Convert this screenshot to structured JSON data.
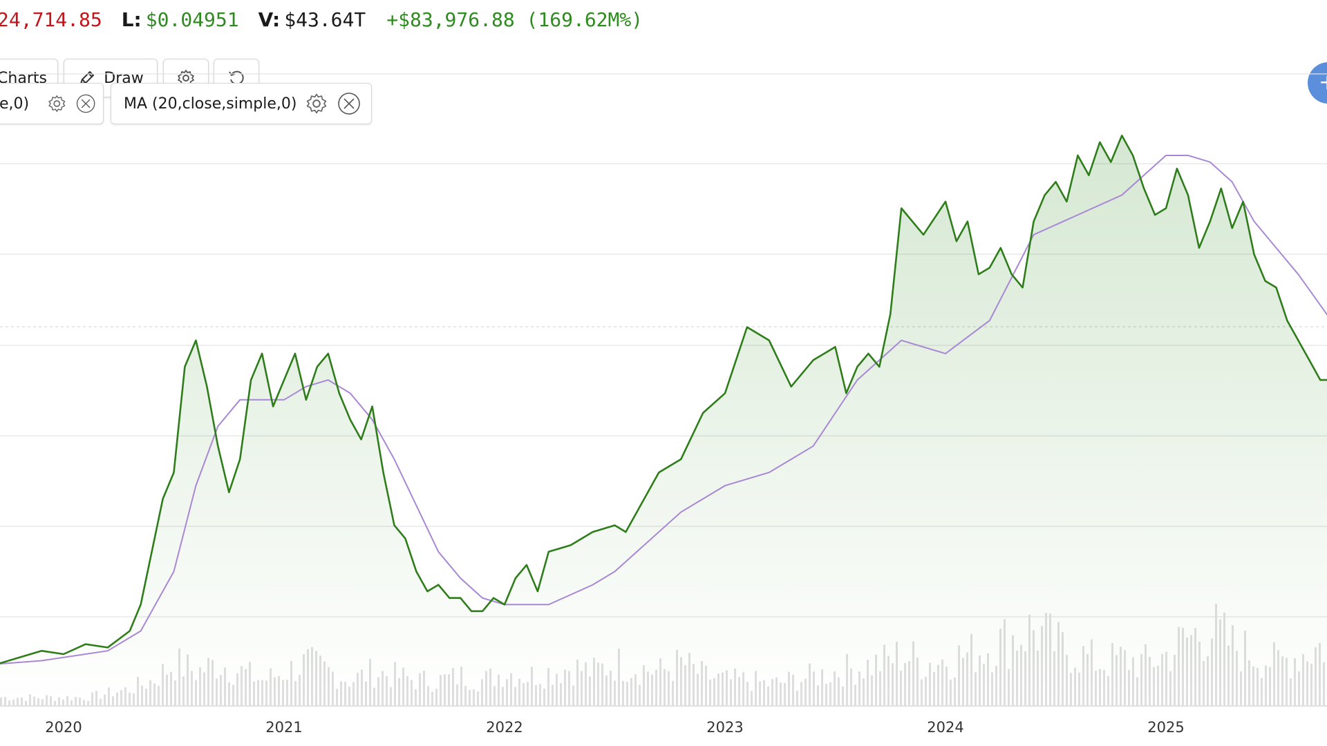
{
  "stats": {
    "high_partial": "24,714.85",
    "low_label": "L:",
    "low_value": "$0.04951",
    "vol_label": "V:",
    "vol_value": "$43.64T",
    "change": "+$83,976.88 (169.62M%)"
  },
  "toolbar": {
    "charts_label": "Charts",
    "draw_label": "Draw"
  },
  "indicators": {
    "first_partial": "e,0)",
    "ma_label": "MA (20,close,simple,0)"
  },
  "colors": {
    "price_line": "#2e7d1a",
    "ma_line": "#a887d4",
    "volume_bar": "#dedede",
    "grid": "#e3e3e3",
    "fab": "#5b8fdc"
  },
  "chart_data": {
    "type": "line",
    "title": "",
    "xlabel": "",
    "ylabel": "",
    "x_ticks": [
      "2020",
      "2021",
      "2022",
      "2023",
      "2024",
      "2025"
    ],
    "ylim": [
      0,
      8
    ],
    "grid": true,
    "series": [
      {
        "role": "price",
        "x": [
          2019.7,
          2019.8,
          2019.9,
          2020.0,
          2020.1,
          2020.2,
          2020.3,
          2020.35,
          2020.4,
          2020.45,
          2020.5,
          2020.55,
          2020.6,
          2020.65,
          2020.7,
          2020.75,
          2020.8,
          2020.85,
          2020.9,
          2020.95,
          2021.0,
          2021.05,
          2021.1,
          2021.15,
          2021.2,
          2021.25,
          2021.3,
          2021.35,
          2021.4,
          2021.45,
          2021.5,
          2021.55,
          2021.6,
          2021.65,
          2021.7,
          2021.75,
          2021.8,
          2021.85,
          2021.9,
          2021.95,
          2022.0,
          2022.05,
          2022.1,
          2022.15,
          2022.2,
          2022.3,
          2022.4,
          2022.5,
          2022.55,
          2022.6,
          2022.7,
          2022.8,
          2022.9,
          2023.0,
          2023.1,
          2023.2,
          2023.3,
          2023.4,
          2023.5,
          2023.55,
          2023.6,
          2023.65,
          2023.7,
          2023.75,
          2023.8,
          2023.9,
          2024.0,
          2024.05,
          2024.1,
          2024.15,
          2024.2,
          2024.25,
          2024.3,
          2024.35,
          2024.4,
          2024.45,
          2024.5,
          2024.55,
          2024.6,
          2024.65,
          2024.7,
          2024.75,
          2024.8,
          2024.85,
          2024.9,
          2024.95,
          2025.0,
          2025.05,
          2025.1,
          2025.15,
          2025.2,
          2025.25,
          2025.3,
          2025.35,
          2025.4,
          2025.45,
          2025.5,
          2025.55,
          2025.6,
          2025.65,
          2025.7,
          2025.75
        ],
        "y": [
          0.3,
          0.4,
          0.5,
          0.45,
          0.6,
          0.55,
          0.8,
          1.2,
          2.0,
          2.8,
          3.2,
          4.8,
          5.2,
          4.5,
          3.6,
          2.9,
          3.4,
          4.6,
          5.0,
          4.2,
          4.6,
          5.0,
          4.3,
          4.8,
          5.0,
          4.4,
          4.0,
          3.7,
          4.2,
          3.2,
          2.4,
          2.2,
          1.7,
          1.4,
          1.5,
          1.3,
          1.3,
          1.1,
          1.1,
          1.3,
          1.2,
          1.6,
          1.8,
          1.4,
          2.0,
          2.1,
          2.3,
          2.4,
          2.3,
          2.6,
          3.2,
          3.4,
          4.1,
          4.4,
          5.4,
          5.2,
          4.5,
          4.9,
          5.1,
          4.4,
          4.8,
          5.0,
          4.8,
          5.6,
          7.2,
          6.8,
          7.3,
          6.7,
          7.0,
          6.2,
          6.3,
          6.6,
          6.2,
          6.0,
          7.0,
          7.4,
          7.6,
          7.3,
          8.0,
          7.7,
          8.2,
          7.9,
          8.3,
          8.0,
          7.5,
          7.1,
          7.2,
          7.8,
          7.4,
          6.6,
          7.0,
          7.5,
          6.9,
          7.3,
          6.5,
          6.1,
          6.0,
          5.5,
          5.2,
          4.9,
          4.6,
          4.6
        ]
      },
      {
        "role": "ma",
        "name": "MA (20,close,simple,0)",
        "x": [
          2019.7,
          2019.9,
          2020.0,
          2020.2,
          2020.35,
          2020.5,
          2020.6,
          2020.7,
          2020.8,
          2020.9,
          2021.0,
          2021.1,
          2021.2,
          2021.3,
          2021.4,
          2021.5,
          2021.6,
          2021.7,
          2021.8,
          2021.9,
          2022.0,
          2022.2,
          2022.4,
          2022.5,
          2022.6,
          2022.8,
          2023.0,
          2023.2,
          2023.4,
          2023.6,
          2023.8,
          2024.0,
          2024.2,
          2024.4,
          2024.6,
          2024.8,
          2025.0,
          2025.1,
          2025.2,
          2025.3,
          2025.4,
          2025.5,
          2025.6,
          2025.75
        ],
        "y": [
          0.3,
          0.35,
          0.4,
          0.5,
          0.8,
          1.7,
          3.0,
          3.9,
          4.3,
          4.3,
          4.3,
          4.5,
          4.6,
          4.4,
          4.0,
          3.4,
          2.7,
          2.0,
          1.6,
          1.3,
          1.2,
          1.2,
          1.5,
          1.7,
          2.0,
          2.6,
          3.0,
          3.2,
          3.6,
          4.6,
          5.2,
          5.0,
          5.5,
          6.8,
          7.1,
          7.4,
          8.0,
          8.0,
          7.9,
          7.6,
          7.0,
          6.6,
          6.2,
          5.5
        ]
      }
    ],
    "volume": {
      "x": [
        2019.7,
        2019.8,
        2019.9,
        2020.0,
        2020.1,
        2020.2,
        2020.3,
        2020.4,
        2020.5,
        2020.6,
        2020.7,
        2020.8,
        2020.9,
        2021.0,
        2021.1,
        2021.2,
        2021.3,
        2021.4,
        2021.5,
        2021.6,
        2021.7,
        2021.8,
        2021.9,
        2022.0,
        2022.1,
        2022.2,
        2022.3,
        2022.4,
        2022.5,
        2022.6,
        2022.7,
        2022.8,
        2022.9,
        2023.0,
        2023.1,
        2023.2,
        2023.3,
        2023.4,
        2023.5,
        2023.6,
        2023.7,
        2023.8,
        2023.9,
        2024.0,
        2024.1,
        2024.2,
        2024.3,
        2024.4,
        2024.5,
        2024.6,
        2024.7,
        2024.8,
        2024.9,
        2025.0,
        2025.1,
        2025.2,
        2025.3,
        2025.4,
        2025.5,
        2025.6,
        2025.7
      ],
      "values": [
        0.1,
        0.1,
        0.1,
        0.1,
        0.1,
        0.15,
        0.2,
        0.3,
        0.5,
        0.4,
        0.5,
        0.4,
        0.3,
        0.4,
        0.5,
        0.4,
        0.3,
        0.4,
        0.35,
        0.3,
        0.3,
        0.35,
        0.3,
        0.4,
        0.35,
        0.4,
        0.45,
        0.4,
        0.5,
        0.45,
        0.4,
        0.5,
        0.35,
        0.3,
        0.3,
        0.25,
        0.3,
        0.35,
        0.4,
        0.45,
        0.5,
        0.6,
        0.5,
        0.55,
        0.6,
        0.7,
        0.8,
        0.9,
        0.7,
        0.6,
        0.5,
        0.55,
        0.5,
        0.6,
        0.8,
        0.9,
        0.7,
        0.6,
        0.5,
        0.6,
        0.7
      ]
    }
  }
}
